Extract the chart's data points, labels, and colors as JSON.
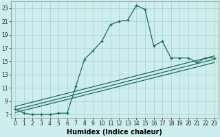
{
  "xlabel": "Humidex (Indice chaleur)",
  "bg_color": "#ceeeed",
  "grid_color": "#aad4d4",
  "line_color": "#1a6b5a",
  "xlim": [
    -0.5,
    23.5
  ],
  "ylim": [
    6.5,
    24.0
  ],
  "yticks": [
    7,
    9,
    11,
    13,
    15,
    17,
    19,
    21,
    23
  ],
  "xticks": [
    0,
    1,
    2,
    3,
    4,
    5,
    6,
    7,
    8,
    9,
    10,
    11,
    12,
    13,
    14,
    15,
    16,
    17,
    18,
    19,
    20,
    21,
    22,
    23
  ],
  "main_line_x": [
    0,
    1,
    2,
    3,
    4,
    5,
    6,
    7,
    8,
    9,
    10,
    11,
    12,
    13,
    14,
    15,
    16,
    17,
    18,
    19,
    20,
    21,
    22,
    23
  ],
  "main_line_y": [
    7.8,
    7.2,
    7.0,
    7.0,
    7.0,
    7.2,
    7.2,
    11.2,
    15.3,
    16.6,
    18.0,
    20.5,
    21.0,
    21.2,
    23.4,
    22.8,
    17.3,
    18.0,
    15.5,
    15.5,
    15.5,
    14.8,
    15.5,
    15.5
  ],
  "diag_line1_x": [
    0,
    23
  ],
  "diag_line1_y": [
    7.3,
    14.8
  ],
  "diag_line2_x": [
    0,
    23
  ],
  "diag_line2_y": [
    7.7,
    15.3
  ],
  "diag_line3_x": [
    0,
    23
  ],
  "diag_line3_y": [
    8.2,
    15.8
  ],
  "tick_fontsize": 5.5,
  "xlabel_fontsize": 7
}
